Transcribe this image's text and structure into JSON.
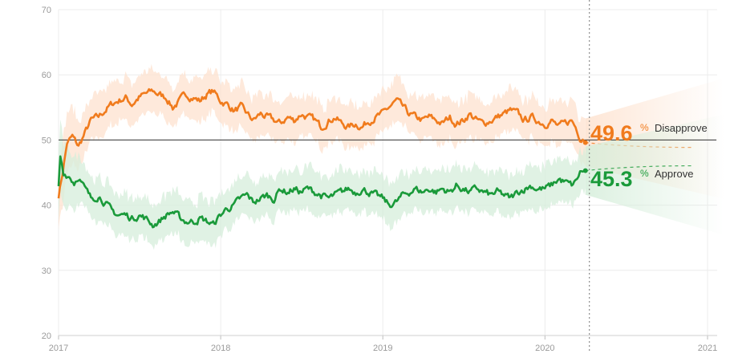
{
  "chart_data": {
    "type": "line",
    "title": "",
    "xlabel": "",
    "ylabel": "",
    "ylim": [
      20,
      70
    ],
    "yticks": [
      20,
      30,
      40,
      50,
      60,
      70
    ],
    "xlim": [
      "2017-01-01",
      "2021-01-01"
    ],
    "xticks": [
      {
        "date": "2017-01-01",
        "label": "2017"
      },
      {
        "date": "2018-01-01",
        "label": "2018"
      },
      {
        "date": "2019-01-01",
        "label": "2019"
      },
      {
        "date": "2020-01-01",
        "label": "2020"
      },
      {
        "date": "2021-01-01",
        "label": "2021"
      }
    ],
    "reference_line": 50,
    "current_date": "2020-04-01",
    "grid": true,
    "band_note": "shaded bands show uncertainty ranges around each series",
    "series": [
      {
        "name": "Disapprove",
        "color": "#f07b1d",
        "band_color": "#fde2cf",
        "current_value": "49.6",
        "percent_sign": "%",
        "points": [
          [
            "2017-01-01",
            41.5
          ],
          [
            "2017-01-10",
            45.0
          ],
          [
            "2017-01-20",
            49.5
          ],
          [
            "2017-02-01",
            50.5
          ],
          [
            "2017-02-15",
            49.0
          ],
          [
            "2017-03-01",
            51.0
          ],
          [
            "2017-03-15",
            53.0
          ],
          [
            "2017-04-01",
            53.5
          ],
          [
            "2017-04-15",
            54.5
          ],
          [
            "2017-05-01",
            55.5
          ],
          [
            "2017-05-15",
            56.0
          ],
          [
            "2017-06-01",
            56.5
          ],
          [
            "2017-06-15",
            55.5
          ],
          [
            "2017-07-01",
            56.5
          ],
          [
            "2017-07-15",
            57.0
          ],
          [
            "2017-08-01",
            57.5
          ],
          [
            "2017-08-15",
            57.0
          ],
          [
            "2017-09-01",
            56.5
          ],
          [
            "2017-09-15",
            55.0
          ],
          [
            "2017-10-01",
            56.0
          ],
          [
            "2017-10-15",
            57.0
          ],
          [
            "2017-11-01",
            56.5
          ],
          [
            "2017-11-15",
            56.0
          ],
          [
            "2017-12-01",
            57.0
          ],
          [
            "2017-12-15",
            57.5
          ],
          [
            "2018-01-01",
            56.0
          ],
          [
            "2018-01-15",
            55.5
          ],
          [
            "2018-02-01",
            54.5
          ],
          [
            "2018-02-15",
            55.0
          ],
          [
            "2018-03-01",
            54.0
          ],
          [
            "2018-03-15",
            53.0
          ],
          [
            "2018-04-01",
            54.0
          ],
          [
            "2018-04-15",
            53.5
          ],
          [
            "2018-05-01",
            53.0
          ],
          [
            "2018-05-15",
            52.5
          ],
          [
            "2018-06-01",
            53.5
          ],
          [
            "2018-06-15",
            53.0
          ],
          [
            "2018-07-01",
            54.0
          ],
          [
            "2018-07-15",
            53.5
          ],
          [
            "2018-08-01",
            53.0
          ],
          [
            "2018-08-15",
            52.0
          ],
          [
            "2018-09-01",
            53.0
          ],
          [
            "2018-09-15",
            53.5
          ],
          [
            "2018-10-01",
            52.5
          ],
          [
            "2018-10-15",
            52.0
          ],
          [
            "2018-11-01",
            52.5
          ],
          [
            "2018-11-15",
            52.0
          ],
          [
            "2018-12-01",
            53.0
          ],
          [
            "2018-12-15",
            53.5
          ],
          [
            "2019-01-01",
            54.0
          ],
          [
            "2019-01-15",
            55.0
          ],
          [
            "2019-02-01",
            56.0
          ],
          [
            "2019-02-15",
            55.0
          ],
          [
            "2019-03-01",
            54.0
          ],
          [
            "2019-03-15",
            53.5
          ],
          [
            "2019-04-01",
            53.0
          ],
          [
            "2019-04-15",
            53.5
          ],
          [
            "2019-05-01",
            53.0
          ],
          [
            "2019-05-15",
            52.5
          ],
          [
            "2019-06-01",
            53.5
          ],
          [
            "2019-06-15",
            52.5
          ],
          [
            "2019-07-01",
            53.0
          ],
          [
            "2019-07-15",
            54.0
          ],
          [
            "2019-08-01",
            53.0
          ],
          [
            "2019-08-15",
            52.5
          ],
          [
            "2019-09-01",
            53.0
          ],
          [
            "2019-09-15",
            53.5
          ],
          [
            "2019-10-01",
            54.0
          ],
          [
            "2019-10-15",
            54.5
          ],
          [
            "2019-11-01",
            54.0
          ],
          [
            "2019-11-15",
            53.0
          ],
          [
            "2019-12-01",
            53.5
          ],
          [
            "2019-12-15",
            53.0
          ],
          [
            "2020-01-01",
            52.5
          ],
          [
            "2020-01-15",
            53.0
          ],
          [
            "2020-02-01",
            52.0
          ],
          [
            "2020-02-15",
            52.5
          ],
          [
            "2020-03-01",
            53.0
          ],
          [
            "2020-03-10",
            52.0
          ],
          [
            "2020-03-20",
            50.5
          ],
          [
            "2020-04-01",
            49.6
          ]
        ]
      },
      {
        "name": "Approve",
        "color": "#1a9a3a",
        "band_color": "#d6eedb",
        "current_value": "45.3",
        "percent_sign": "%",
        "points": [
          [
            "2017-01-01",
            43.0
          ],
          [
            "2017-01-05",
            47.5
          ],
          [
            "2017-01-12",
            45.0
          ],
          [
            "2017-01-25",
            44.5
          ],
          [
            "2017-02-05",
            43.5
          ],
          [
            "2017-02-15",
            44.5
          ],
          [
            "2017-03-01",
            42.5
          ],
          [
            "2017-03-15",
            41.0
          ],
          [
            "2017-04-01",
            41.5
          ],
          [
            "2017-04-15",
            40.5
          ],
          [
            "2017-05-01",
            39.0
          ],
          [
            "2017-05-15",
            38.5
          ],
          [
            "2017-06-01",
            38.5
          ],
          [
            "2017-06-15",
            38.0
          ],
          [
            "2017-07-01",
            38.5
          ],
          [
            "2017-07-15",
            38.0
          ],
          [
            "2017-08-01",
            37.0
          ],
          [
            "2017-08-15",
            37.5
          ],
          [
            "2017-09-01",
            38.5
          ],
          [
            "2017-09-15",
            39.0
          ],
          [
            "2017-10-01",
            38.0
          ],
          [
            "2017-10-15",
            37.5
          ],
          [
            "2017-11-01",
            37.5
          ],
          [
            "2017-11-15",
            38.0
          ],
          [
            "2017-12-01",
            37.5
          ],
          [
            "2017-12-15",
            37.0
          ],
          [
            "2018-01-01",
            38.5
          ],
          [
            "2018-01-15",
            39.5
          ],
          [
            "2018-02-01",
            40.0
          ],
          [
            "2018-02-15",
            41.0
          ],
          [
            "2018-03-01",
            41.5
          ],
          [
            "2018-03-15",
            40.5
          ],
          [
            "2018-04-01",
            41.0
          ],
          [
            "2018-04-15",
            41.5
          ],
          [
            "2018-05-01",
            41.0
          ],
          [
            "2018-05-15",
            42.5
          ],
          [
            "2018-06-01",
            42.0
          ],
          [
            "2018-06-15",
            42.5
          ],
          [
            "2018-07-01",
            42.0
          ],
          [
            "2018-07-15",
            42.5
          ],
          [
            "2018-08-01",
            42.0
          ],
          [
            "2018-08-15",
            41.5
          ],
          [
            "2018-09-01",
            41.0
          ],
          [
            "2018-09-15",
            41.5
          ],
          [
            "2018-10-01",
            42.0
          ],
          [
            "2018-10-15",
            42.5
          ],
          [
            "2018-11-01",
            42.0
          ],
          [
            "2018-11-15",
            42.5
          ],
          [
            "2018-12-01",
            42.0
          ],
          [
            "2018-12-15",
            41.5
          ],
          [
            "2019-01-01",
            41.0
          ],
          [
            "2019-01-15",
            40.0
          ],
          [
            "2019-02-01",
            40.5
          ],
          [
            "2019-02-15",
            41.5
          ],
          [
            "2019-03-01",
            42.0
          ],
          [
            "2019-03-15",
            42.5
          ],
          [
            "2019-04-01",
            42.0
          ],
          [
            "2019-04-15",
            42.5
          ],
          [
            "2019-05-01",
            42.0
          ],
          [
            "2019-05-15",
            42.5
          ],
          [
            "2019-06-01",
            42.0
          ],
          [
            "2019-06-15",
            43.0
          ],
          [
            "2019-07-01",
            42.5
          ],
          [
            "2019-07-15",
            42.0
          ],
          [
            "2019-08-01",
            42.5
          ],
          [
            "2019-08-15",
            42.0
          ],
          [
            "2019-09-01",
            41.5
          ],
          [
            "2019-09-15",
            42.0
          ],
          [
            "2019-10-01",
            41.5
          ],
          [
            "2019-10-15",
            41.0
          ],
          [
            "2019-11-01",
            42.0
          ],
          [
            "2019-11-15",
            42.5
          ],
          [
            "2019-12-01",
            43.0
          ],
          [
            "2019-12-15",
            42.5
          ],
          [
            "2020-01-01",
            42.5
          ],
          [
            "2020-01-15",
            43.0
          ],
          [
            "2020-02-01",
            44.0
          ],
          [
            "2020-02-15",
            43.5
          ],
          [
            "2020-03-01",
            43.0
          ],
          [
            "2020-03-10",
            43.5
          ],
          [
            "2020-03-20",
            45.0
          ],
          [
            "2020-04-01",
            45.3
          ]
        ]
      }
    ]
  }
}
